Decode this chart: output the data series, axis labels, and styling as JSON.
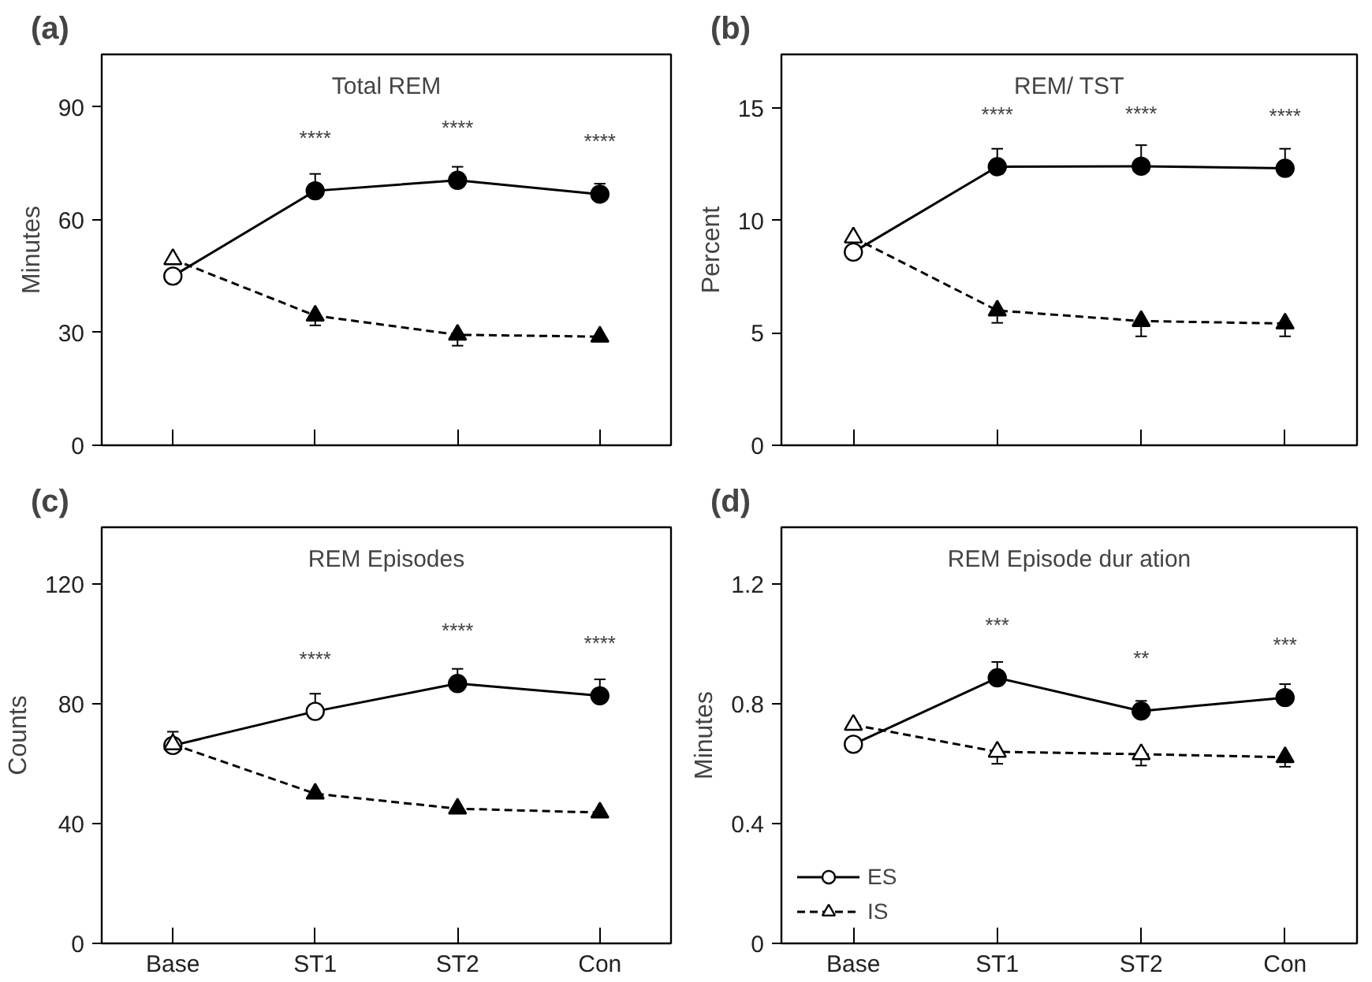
{
  "chart_data": [
    {
      "type": "line",
      "title": "Total REM",
      "ylabel": "Minutes",
      "categories": [
        "Base",
        "ST1",
        "ST2",
        "Con"
      ],
      "ylim": [
        0,
        104
      ],
      "yticks": [
        0,
        30,
        60,
        90
      ],
      "tick_labels": "y",
      "grid": false,
      "annotations": [
        "(a)",
        {
          "text": "****",
          "x": "ST1",
          "y": 67.7
        },
        {
          "text": "****",
          "x": "ST2",
          "y": 70.5
        },
        {
          "text": "****",
          "x": "Con",
          "y": 66.8
        }
      ],
      "series": [
        {
          "color": "#000000",
          "colors": [
            "#ffffff",
            "#000000",
            "#000000",
            "#000000"
          ],
          "marker": "circle",
          "line_style": "solid",
          "values": [
            45,
            67.7,
            70.5,
            66.8
          ],
          "errors": [
            null,
            [
              67.7,
              72.2
            ],
            [
              70.5,
              74.1
            ],
            [
              66.8,
              69.6
            ]
          ]
        },
        {
          "color": "#000000",
          "colors": [
            "#ffffff",
            "#000000",
            "#000000",
            "#000000"
          ],
          "marker": "triangle",
          "line_style": "dashed",
          "values": [
            49.5,
            34.5,
            29.4,
            28.9
          ],
          "errors": [
            null,
            [
              31.9,
              34.5
            ],
            [
              26.5,
              29.4
            ],
            null
          ]
        }
      ]
    },
    {
      "type": "line",
      "title": "REM/ TST",
      "ylabel": "Percent",
      "categories": [
        "Base",
        "ST1",
        "ST2",
        "Con"
      ],
      "ylim": [
        0,
        17.4
      ],
      "yticks": [
        0,
        5,
        10,
        15
      ],
      "tick_labels": "y",
      "grid": false,
      "annotations": [
        "(b)",
        {
          "text": "****",
          "x": "ST1",
          "y": 12.4
        },
        {
          "text": "****",
          "x": "ST2",
          "y": 12.42
        },
        {
          "text": "****",
          "x": "Con",
          "y": 12.33
        }
      ],
      "series": [
        {
          "color": "#000000",
          "colors": [
            "#ffffff",
            "#000000",
            "#000000",
            "#000000"
          ],
          "marker": "circle",
          "line_style": "solid",
          "values": [
            8.6,
            12.4,
            12.42,
            12.33
          ],
          "errors": [
            null,
            [
              12.4,
              13.2
            ],
            [
              12.42,
              13.36
            ],
            [
              12.33,
              13.2
            ]
          ]
        },
        {
          "color": "#000000",
          "colors": [
            "#ffffff",
            "#000000",
            "#000000",
            "#000000"
          ],
          "marker": "triangle",
          "line_style": "dashed",
          "values": [
            9.25,
            6.0,
            5.53,
            5.42
          ],
          "errors": [
            null,
            [
              5.45,
              6.0
            ],
            [
              4.85,
              5.53
            ],
            [
              4.85,
              5.42
            ]
          ]
        }
      ]
    },
    {
      "type": "line",
      "title": "REM Episodes",
      "ylabel": "Counts",
      "categories": [
        "Base",
        "ST1",
        "ST2",
        "Con"
      ],
      "ylim": [
        0,
        139
      ],
      "yticks": [
        0,
        40,
        80,
        120
      ],
      "grid": false,
      "annotations": [
        "(c)",
        {
          "text": "****",
          "x": "ST1",
          "y": 77.5
        },
        {
          "text": "****",
          "x": "ST2",
          "y": 86.8
        },
        {
          "text": "****",
          "x": "Con",
          "y": 82.7
        }
      ],
      "series": [
        {
          "color": "#000000",
          "colors": [
            "#ffffff",
            "#ffffff",
            "#000000",
            "#000000"
          ],
          "marker": "circle",
          "line_style": "solid",
          "values": [
            66.1,
            77.5,
            86.8,
            82.7
          ],
          "errors": [
            [
              66.1,
              70.7
            ],
            [
              77.5,
              83.4
            ],
            [
              86.8,
              91.7
            ],
            [
              82.7,
              88.2
            ]
          ]
        },
        {
          "color": "#000000",
          "colors": [
            "#ffffff",
            "#000000",
            "#000000",
            "#000000"
          ],
          "marker": "triangle",
          "line_style": "dashed",
          "values": [
            66.5,
            50.0,
            45.0,
            43.7
          ],
          "errors": [
            null,
            null,
            null,
            null
          ]
        }
      ]
    },
    {
      "type": "line",
      "title": "REM Episode dur ation",
      "ylabel": "Minutes",
      "categories": [
        "Base",
        "ST1",
        "ST2",
        "Con"
      ],
      "ylim": [
        0,
        1.39
      ],
      "yticks": [
        0,
        0.4,
        0.8,
        1.2
      ],
      "grid": false,
      "legend": "bottom left",
      "annotations": [
        "(d)",
        {
          "text": "***",
          "x": "ST1",
          "y": 0.887
        },
        {
          "text": "**",
          "x": "ST2",
          "y": 0.776
        },
        {
          "text": "***",
          "x": "Con",
          "y": 0.821
        }
      ],
      "series": [
        {
          "name": "ES",
          "color": "#000000",
          "colors": [
            "#ffffff",
            "#000000",
            "#000000",
            "#000000"
          ],
          "marker": "circle",
          "line_style": "solid",
          "values": [
            0.665,
            0.887,
            0.776,
            0.821
          ],
          "errors": [
            null,
            [
              0.887,
              0.94
            ],
            [
              0.776,
              0.81
            ],
            [
              0.821,
              0.866
            ]
          ]
        },
        {
          "name": "IS",
          "color": "#000000",
          "colors": [
            "#ffffff",
            "#ffffff",
            "#ffffff",
            "#000000"
          ],
          "marker": "triangle",
          "line_style": "dashed",
          "values": [
            0.73,
            0.64,
            0.632,
            0.622
          ],
          "errors": [
            null,
            [
              0.6,
              0.64
            ],
            [
              0.594,
              0.632
            ],
            [
              0.59,
              0.622
            ]
          ]
        }
      ]
    }
  ]
}
